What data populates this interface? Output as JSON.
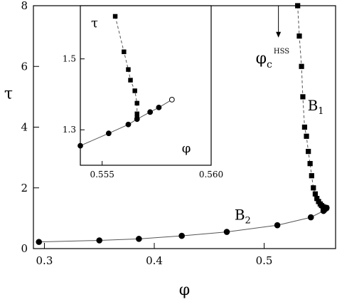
{
  "chart_data": [
    {
      "id": "main",
      "type": "scatter",
      "title": "",
      "xlabel": "φ",
      "ylabel": "τ",
      "xlim": [
        0.29,
        0.565
      ],
      "ylim": [
        0,
        8
      ],
      "x_ticks": [
        0.3,
        0.4,
        0.5
      ],
      "x_tick_labels": [
        "0.3",
        "0.4",
        "0.5"
      ],
      "y_ticks": [
        0,
        2,
        4,
        6,
        8
      ],
      "y_tick_labels": [
        "0",
        "2",
        "4",
        "6",
        "8"
      ],
      "grid": false,
      "series": [
        {
          "name": "B2",
          "marker": "circle",
          "line": "solid",
          "x": [
            0.295,
            0.35,
            0.386,
            0.425,
            0.466,
            0.512,
            0.5425,
            0.554,
            0.5553,
            0.5562,
            0.5568
          ],
          "y": [
            0.22,
            0.27,
            0.32,
            0.42,
            0.55,
            0.77,
            1.03,
            1.24,
            1.29,
            1.32,
            1.34
          ]
        },
        {
          "name": "B1",
          "marker": "square",
          "line": "dashed",
          "x": [
            0.5305,
            0.532,
            0.534,
            0.5352,
            0.5368,
            0.5385,
            0.5402,
            0.5418,
            0.5432,
            0.5448,
            0.5465,
            0.548,
            0.5495,
            0.551,
            0.5522,
            0.5535,
            0.5548,
            0.556,
            0.5566
          ],
          "y": [
            8.0,
            7.0,
            6.0,
            5.0,
            4.0,
            3.7,
            3.2,
            2.8,
            2.4,
            2.0,
            1.8,
            1.65,
            1.55,
            1.47,
            1.42,
            1.38,
            1.36,
            1.35,
            1.34
          ]
        }
      ],
      "annotations": {
        "b1_label": "B",
        "b1_sub": "1",
        "b2_label": "B",
        "b2_sub": "2",
        "phi_c_label": "φ",
        "phi_c_sub": "c",
        "phi_c_sup": "HSS",
        "phi_c_arrow_x": 0.513,
        "phi_c_arrow_y_from": 8.0,
        "phi_c_arrow_y_to": 6.95
      }
    },
    {
      "id": "inset",
      "type": "scatter",
      "title": "",
      "xlabel": "φ",
      "ylabel": "τ",
      "xlim": [
        0.554,
        0.56
      ],
      "ylim": [
        1.2,
        1.65
      ],
      "x_ticks": [
        0.555,
        0.56
      ],
      "x_tick_labels": [
        "0.555",
        "0.560"
      ],
      "y_ticks": [
        1.3,
        1.5
      ],
      "y_tick_labels": [
        "1.3",
        "1.5"
      ],
      "grid": false,
      "series": [
        {
          "name": "B2",
          "marker": "circle",
          "line": "solid",
          "x": [
            0.554,
            0.5553,
            0.5562,
            0.5566,
            0.5572,
            0.5576,
            0.5582
          ],
          "y": [
            1.255,
            1.29,
            1.315,
            1.33,
            1.35,
            1.363,
            1.385
          ],
          "open_last_point": true
        },
        {
          "name": "B1",
          "marker": "square",
          "line": "dashed",
          "x": [
            0.5556,
            0.556,
            0.5562,
            0.5563,
            0.5565,
            0.5566,
            0.5566,
            0.5566
          ],
          "y": [
            1.62,
            1.52,
            1.47,
            1.44,
            1.41,
            1.375,
            1.345,
            1.335
          ]
        }
      ]
    }
  ]
}
